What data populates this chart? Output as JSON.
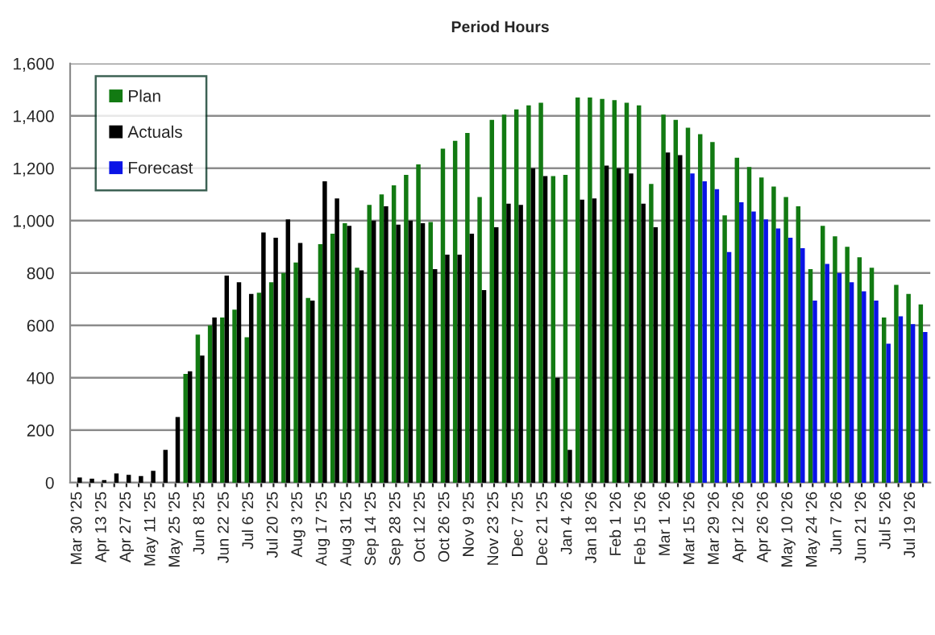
{
  "chart_data": {
    "type": "bar",
    "title": "Period Hours",
    "categories": [
      "Mar 30 '25",
      null,
      "Apr 13 '25",
      null,
      "Apr 27 '25",
      null,
      "May 11 '25",
      null,
      "May 25 '25",
      null,
      "Jun 8 '25",
      null,
      "Jun 22 '25",
      null,
      "Jul 6 '25",
      null,
      "Jul 20 '25",
      null,
      "Aug 3 '25",
      null,
      "Aug 17 '25",
      null,
      "Aug 31 '25",
      null,
      "Sep 14 '25",
      null,
      "Sep 28 '25",
      null,
      "Oct 12 '25",
      null,
      "Oct 26 '25",
      null,
      "Nov 9 '25",
      null,
      "Nov 23 '25",
      null,
      "Dec 7 '25",
      null,
      "Dec 21 '25",
      null,
      "Jan 4 '26",
      null,
      "Jan 18 '26",
      null,
      "Feb 1 '26",
      null,
      "Feb 15 '26",
      null,
      "Mar 1 '26",
      null,
      "Mar 15 '26",
      null,
      "Mar 29 '26",
      null,
      "Apr 12 '26",
      null,
      "Apr 26 '26",
      null,
      "May 10 '26",
      null,
      "May 24 '26",
      null,
      "Jun 7 '26",
      null,
      "Jun 21 '26",
      null,
      "Jul 5 '26",
      null,
      "Jul 19 '26",
      null
    ],
    "series": [
      {
        "name": "Plan",
        "color": "#127a12",
        "values": [
          null,
          null,
          null,
          null,
          null,
          null,
          null,
          null,
          null,
          415,
          565,
          600,
          630,
          660,
          555,
          725,
          765,
          800,
          840,
          705,
          910,
          950,
          990,
          820,
          1060,
          1100,
          1135,
          1175,
          1215,
          995,
          1275,
          1305,
          1335,
          1090,
          1385,
          1405,
          1425,
          1440,
          1450,
          1170,
          1175,
          1470,
          1470,
          1465,
          1460,
          1450,
          1440,
          1140,
          1405,
          1385,
          1355,
          1330,
          1300,
          1020,
          1240,
          1205,
          1165,
          1130,
          1090,
          1055,
          815,
          980,
          940,
          900,
          860,
          820,
          630,
          755,
          720,
          680
        ]
      },
      {
        "name": "Actuals",
        "color": "#000000",
        "values": [
          20,
          15,
          10,
          35,
          30,
          25,
          45,
          125,
          250,
          425,
          485,
          630,
          790,
          765,
          720,
          955,
          935,
          1005,
          915,
          695,
          1150,
          1085,
          980,
          810,
          1000,
          1055,
          985,
          1000,
          990,
          815,
          870,
          870,
          950,
          735,
          975,
          1065,
          1060,
          1200,
          1170,
          400,
          125,
          1080,
          1085,
          1210,
          1200,
          1180,
          1065,
          975,
          1260,
          1250,
          null,
          null,
          null,
          null,
          null,
          null,
          null,
          null,
          null,
          null,
          null,
          null,
          null,
          null,
          null,
          null,
          null,
          null,
          null,
          null
        ]
      },
      {
        "name": "Forecast",
        "color": "#0a14e6",
        "values": [
          null,
          null,
          null,
          null,
          null,
          null,
          null,
          null,
          null,
          null,
          null,
          null,
          null,
          null,
          null,
          null,
          null,
          null,
          null,
          null,
          null,
          null,
          null,
          null,
          null,
          null,
          null,
          null,
          null,
          null,
          null,
          null,
          null,
          null,
          null,
          null,
          null,
          null,
          null,
          null,
          null,
          null,
          null,
          null,
          null,
          null,
          null,
          null,
          null,
          null,
          1180,
          1150,
          1120,
          880,
          1070,
          1035,
          1005,
          970,
          935,
          895,
          695,
          835,
          800,
          765,
          730,
          695,
          530,
          635,
          605,
          575
        ]
      }
    ],
    "ylim": [
      0,
      1600
    ],
    "yticks": [
      0,
      200,
      400,
      600,
      800,
      {
        "value": 1000,
        "label": "1,000"
      },
      {
        "value": 1200,
        "label": "1,200"
      },
      {
        "value": 1400,
        "label": "1,400"
      },
      {
        "value": 1600,
        "label": "1,600"
      }
    ],
    "grid": "y",
    "legend": "top left"
  }
}
